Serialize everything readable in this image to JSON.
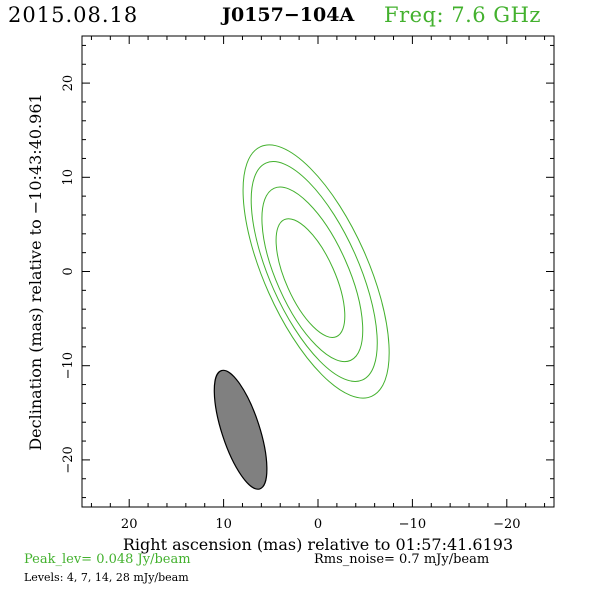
{
  "header": {
    "date": "2015.08.18",
    "source": "J0157−104A",
    "freq": "Freq: 7.6 GHz"
  },
  "footer": {
    "peak": "Peak_lev=  0.048 Jy/beam",
    "rms": "Rms_noise=  0.7 mJy/beam",
    "levels": "Levels:  4,  7,  14,  28 mJy/beam"
  },
  "colors": {
    "contour": "#43b12e",
    "beam_fill": "#808080",
    "axes": "#000000"
  },
  "chart_data": {
    "type": "contour",
    "title": "J0157−104A",
    "xlabel": "Right ascension (mas) relative to 01:57:41.6193",
    "ylabel": "Declination (mas) relative to −10:43:40.961",
    "xlim": [
      25,
      -25
    ],
    "ylim": [
      -25,
      25
    ],
    "x_reversed": true,
    "x_ticks": [
      20,
      10,
      0,
      -10,
      -20
    ],
    "y_ticks": [
      20,
      10,
      0,
      -10,
      -20
    ],
    "x_tick_labels": [
      "20",
      "10",
      "0",
      "−10",
      "−20"
    ],
    "y_tick_labels": [
      "20",
      "10",
      "0",
      "−10",
      "−20"
    ],
    "grid": false,
    "contour_levels_mJy": [
      4,
      7,
      14,
      28
    ],
    "contours": [
      {
        "level": 4,
        "center": [
          0.2,
          0.0
        ],
        "semi_major": 14.5,
        "semi_minor": 5.5,
        "pa_deg": 24
      },
      {
        "level": 7,
        "center": [
          0.4,
          0.0
        ],
        "semi_major": 12.6,
        "semi_minor": 4.7,
        "pa_deg": 24
      },
      {
        "level": 14,
        "center": [
          0.6,
          -0.3
        ],
        "semi_major": 10.0,
        "semi_minor": 3.8,
        "pa_deg": 24
      },
      {
        "level": 28,
        "center": [
          0.8,
          -0.7
        ],
        "semi_major": 6.8,
        "semi_minor": 2.6,
        "pa_deg": 24
      }
    ],
    "beam": {
      "center": [
        8.2,
        -16.8
      ],
      "semi_major": 6.6,
      "semi_minor": 2.0,
      "pa_deg": 18
    }
  }
}
